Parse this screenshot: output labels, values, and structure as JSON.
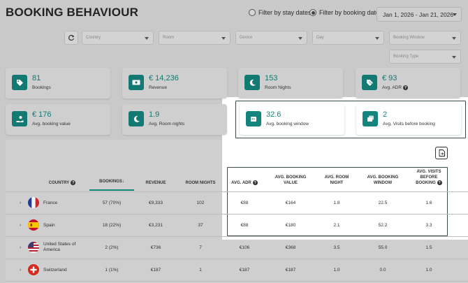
{
  "header": {
    "title": "BOOKING BEHAVIOUR",
    "filter_stay": "Filter by stay dates",
    "filter_booking": "Filter by booking date",
    "date_range": "Jan 1, 2026 - Jan 21, 2026"
  },
  "filters": {
    "country": "Country",
    "room": "Room",
    "device": "Device",
    "day": "Day",
    "booking_window": "Booking Window",
    "booking_type": "Booking Type"
  },
  "kpis": [
    {
      "value": "81",
      "label": "Bookings",
      "icon": "tag-icon"
    },
    {
      "value": "€ 14,236",
      "label": "Revenue",
      "icon": "money-icon"
    },
    {
      "value": "153",
      "label": "Room Nights",
      "icon": "moon-icon"
    },
    {
      "value": "€ 93",
      "label": "Avg. ADR",
      "icon": "percent-tag-icon"
    },
    {
      "value": "€ 176",
      "label": "Avg. booking value",
      "icon": "hand-coin-icon"
    },
    {
      "value": "1.9",
      "label": "Avg. Room nights",
      "icon": "moon-icon"
    },
    {
      "value": "32.6",
      "label": "Avg. booking window",
      "icon": "calendar-icon"
    },
    {
      "value": "2",
      "label": "Avg. Visits before booking",
      "icon": "visits-icon"
    }
  ],
  "table": {
    "headers": {
      "country": "COUNTRY",
      "bookings": "BOOKINGS",
      "revenue": "REVENUE",
      "room_nights": "ROOM NIGHTS",
      "avg_adr": "AVG. ADR",
      "avg_booking_value": "AVG. BOOKING VALUE",
      "avg_room_night": "AVG. ROOM NIGHT",
      "avg_booking_window": "AVG. BOOKING WINDOW",
      "avg_visits": "AVG. VISITS BEFORE BOOKING"
    },
    "rows": [
      {
        "country": "France",
        "bookings": "57 (70%)",
        "revenue": "€9,333",
        "room_nights": "102",
        "adr": "€88",
        "booking_value": "€164",
        "room_night": "1.8",
        "booking_window": "22.5",
        "visits": "1.6"
      },
      {
        "country": "Spain",
        "bookings": "18 (22%)",
        "revenue": "€3,231",
        "room_nights": "37",
        "adr": "€88",
        "booking_value": "€180",
        "room_night": "2.1",
        "booking_window": "52.2",
        "visits": "3.3"
      },
      {
        "country": "United States of America",
        "bookings": "2 (2%)",
        "revenue": "€736",
        "room_nights": "7",
        "adr": "€106",
        "booking_value": "€368",
        "room_night": "3.5",
        "booking_window": "55.0",
        "visits": "1.5"
      },
      {
        "country": "Switzerland",
        "bookings": "1 (1%)",
        "revenue": "€187",
        "room_nights": "1",
        "adr": "€187",
        "booking_value": "€187",
        "room_night": "1.0",
        "booking_window": "0.0",
        "visits": "1.0"
      }
    ]
  },
  "colors": {
    "accent": "#13857d",
    "highlight_border": "#3a4a48"
  }
}
